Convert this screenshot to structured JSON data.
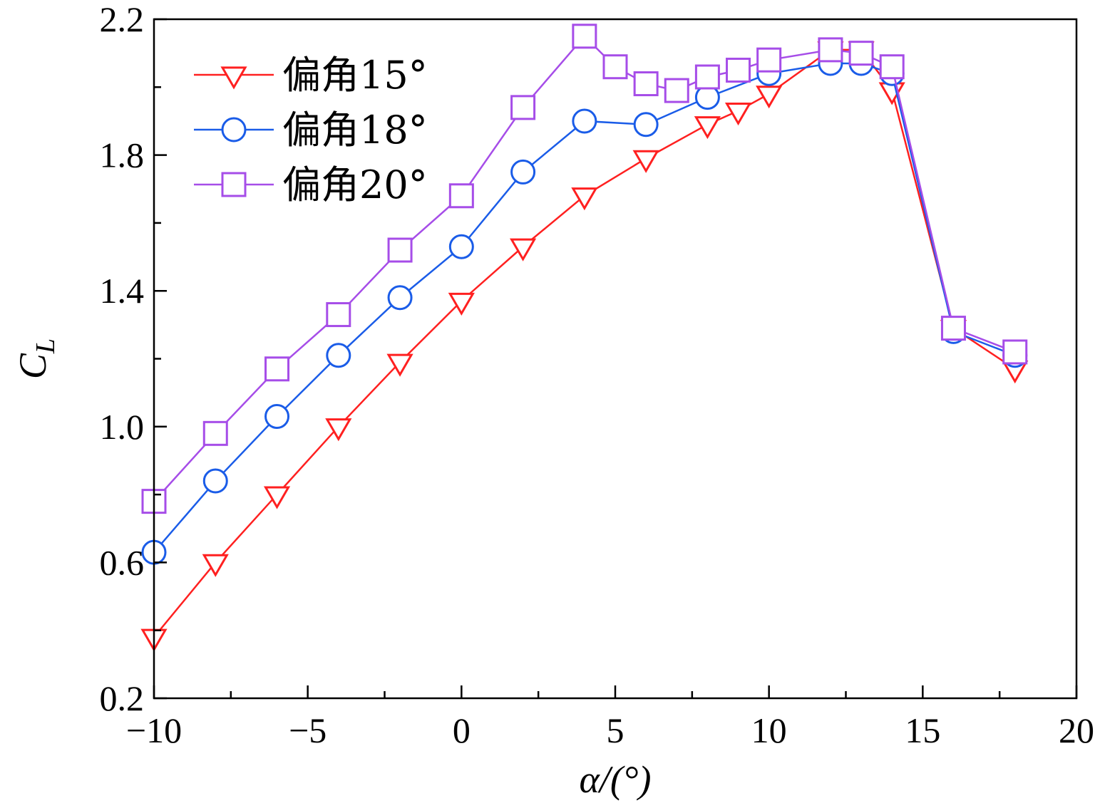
{
  "chart_data": {
    "type": "line",
    "title": "",
    "xlabel": "α/(°)",
    "ylabel": "C",
    "ylabel_subscript": "L",
    "xlim": [
      -10,
      20
    ],
    "ylim": [
      0.2,
      2.2
    ],
    "xticks": [
      -10,
      -5,
      0,
      5,
      10,
      15,
      20
    ],
    "xtick_labels": [
      "−10",
      "−5",
      "0",
      "5",
      "10",
      "15",
      "20"
    ],
    "xminor": [
      -7.5,
      -2.5,
      2.5,
      7.5,
      12.5,
      17.5
    ],
    "yticks": [
      0.2,
      0.6,
      1.0,
      1.4,
      1.8,
      2.2
    ],
    "ytick_labels": [
      "0.2",
      "0.6",
      "1.0",
      "1.4",
      "1.8",
      "2.2"
    ],
    "yminor": [
      0.4,
      0.8,
      1.2,
      1.6,
      2.0
    ],
    "grid": false,
    "legend_position": "top-left",
    "series": [
      {
        "name": "偏角15°",
        "color": "#ff2020",
        "marker": "triangle-down",
        "x": [
          -10,
          -8,
          -6,
          -4,
          -2,
          0,
          2,
          4,
          6,
          8,
          9,
          10,
          12,
          13,
          14,
          16,
          18
        ],
        "y": [
          0.38,
          0.6,
          0.8,
          1.0,
          1.19,
          1.37,
          1.53,
          1.68,
          1.79,
          1.89,
          1.93,
          1.98,
          2.11,
          2.11,
          1.99,
          1.29,
          1.17
        ]
      },
      {
        "name": "偏角18°",
        "color": "#1a5ce8",
        "marker": "circle",
        "x": [
          -10,
          -8,
          -6,
          -4,
          -2,
          0,
          2,
          4,
          6,
          8,
          10,
          12,
          13,
          14,
          16,
          18
        ],
        "y": [
          0.63,
          0.84,
          1.03,
          1.21,
          1.38,
          1.53,
          1.75,
          1.9,
          1.89,
          1.97,
          2.04,
          2.07,
          2.07,
          2.04,
          1.28,
          1.21
        ]
      },
      {
        "name": "偏角20°",
        "color": "#a64de8",
        "marker": "square",
        "x": [
          -10,
          -8,
          -6,
          -4,
          -2,
          0,
          2,
          4,
          5,
          6,
          7,
          8,
          9,
          10,
          12,
          13,
          14,
          16,
          18
        ],
        "y": [
          0.78,
          0.98,
          1.17,
          1.33,
          1.52,
          1.68,
          1.94,
          2.15,
          2.06,
          2.01,
          1.99,
          2.03,
          2.05,
          2.08,
          2.11,
          2.1,
          2.06,
          1.29,
          1.22
        ]
      }
    ]
  }
}
